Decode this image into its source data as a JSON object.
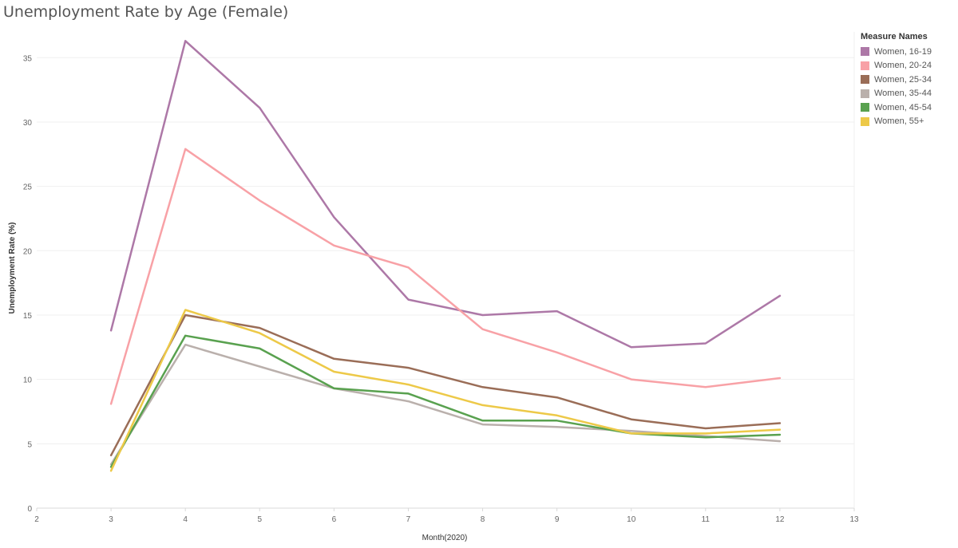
{
  "chart_data": {
    "type": "line",
    "title": "Unemployment Rate by Age (Female)",
    "xlabel": "Month(2020)",
    "ylabel": "Unemployment Rate (%)",
    "xlim": [
      2,
      13
    ],
    "ylim": [
      0,
      37
    ],
    "x_ticks": [
      2,
      3,
      4,
      5,
      6,
      7,
      8,
      9,
      10,
      11,
      12,
      13
    ],
    "y_ticks": [
      0,
      5,
      10,
      15,
      20,
      25,
      30,
      35
    ],
    "grid": true,
    "legend_title": "Measure Names",
    "legend_position": "right",
    "x": [
      3,
      4,
      5,
      6,
      7,
      8,
      9,
      10,
      11,
      12
    ],
    "series": [
      {
        "name": "Women, 16-19",
        "color": "#AD78A7",
        "values": [
          13.8,
          36.3,
          31.1,
          22.6,
          16.2,
          15.0,
          15.3,
          12.5,
          12.8,
          16.5
        ]
      },
      {
        "name": "Women, 20-24",
        "color": "#F8A1A6",
        "values": [
          8.1,
          27.9,
          23.9,
          20.4,
          18.7,
          13.9,
          12.1,
          10.0,
          9.4,
          10.1
        ]
      },
      {
        "name": "Women, 25-34",
        "color": "#9A6D57",
        "values": [
          4.1,
          15.0,
          14.0,
          11.6,
          10.9,
          9.4,
          8.6,
          6.9,
          6.2,
          6.6
        ]
      },
      {
        "name": "Women, 35-44",
        "color": "#BAB0AC",
        "values": [
          3.4,
          12.7,
          11.0,
          9.3,
          8.3,
          6.5,
          6.3,
          6.0,
          5.6,
          5.2
        ]
      },
      {
        "name": "Women, 45-54",
        "color": "#59A14F",
        "values": [
          3.2,
          13.4,
          12.4,
          9.3,
          8.9,
          6.8,
          6.8,
          5.8,
          5.5,
          5.7
        ]
      },
      {
        "name": "Women, 55+",
        "color": "#EDC948",
        "values": [
          2.9,
          15.4,
          13.6,
          10.6,
          9.6,
          8.0,
          7.2,
          5.8,
          5.8,
          6.1
        ]
      }
    ]
  }
}
